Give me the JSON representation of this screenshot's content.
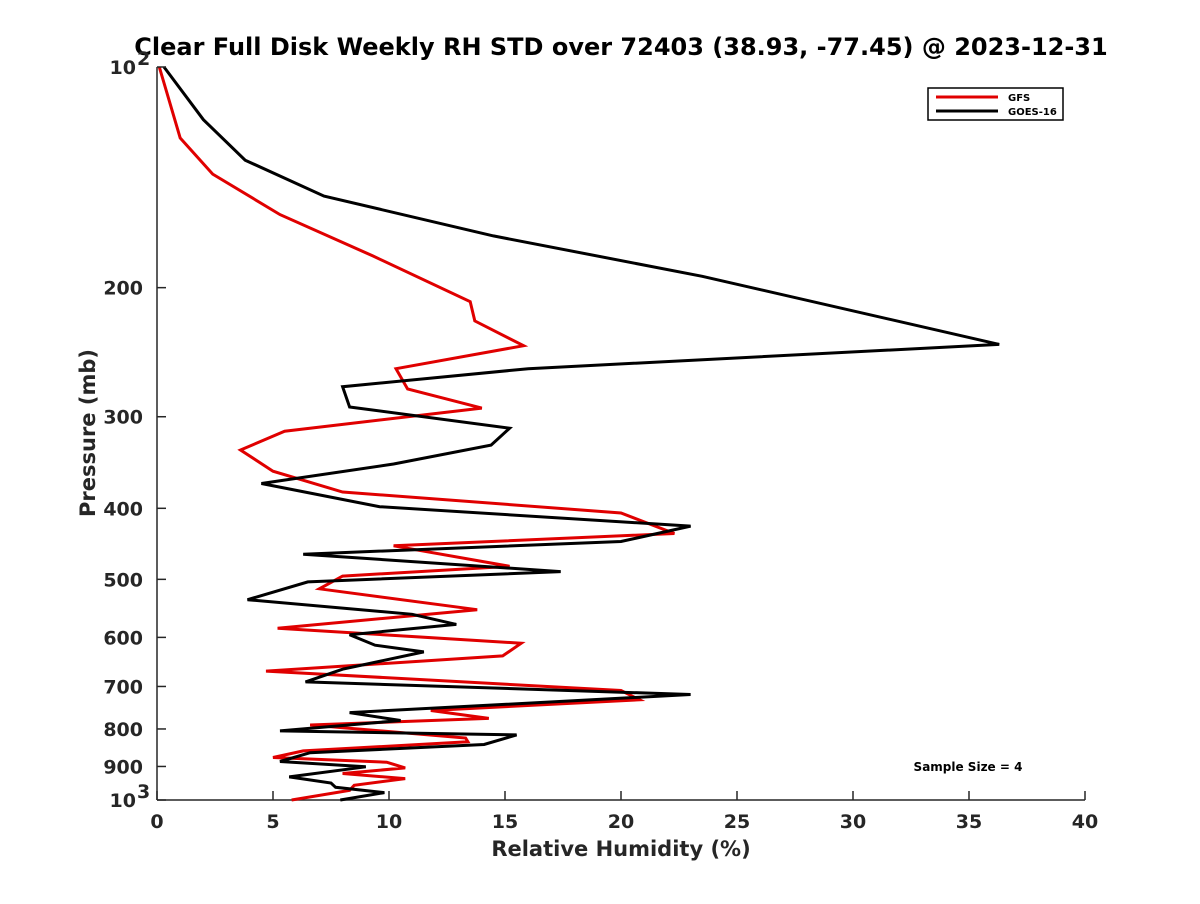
{
  "chart_data": {
    "type": "line",
    "title": "Clear Full Disk Weekly RH STD over 72403 (38.93, -77.45) @ 2023-12-31",
    "xlabel": "Relative Humidity (%)",
    "ylabel": "Pressure (mb)",
    "xlim": [
      0,
      40
    ],
    "ylim": [
      100,
      1000
    ],
    "y_scale": "log",
    "y_reversed": true,
    "x_ticks": [
      "0",
      "5",
      "10",
      "15",
      "20",
      "25",
      "30",
      "35",
      "40"
    ],
    "y_ticks": [
      {
        "value": 100,
        "label": "10",
        "sup": "2"
      },
      {
        "value": 200,
        "label": "200",
        "sup": ""
      },
      {
        "value": 300,
        "label": "300",
        "sup": ""
      },
      {
        "value": 400,
        "label": "400",
        "sup": ""
      },
      {
        "value": 500,
        "label": "500",
        "sup": ""
      },
      {
        "value": 600,
        "label": "600",
        "sup": ""
      },
      {
        "value": 700,
        "label": "700",
        "sup": ""
      },
      {
        "value": 800,
        "label": "800",
        "sup": ""
      },
      {
        "value": 900,
        "label": "900",
        "sup": ""
      },
      {
        "value": 1000,
        "label": "10",
        "sup": "3"
      }
    ],
    "legend": "top-right",
    "grid": false,
    "series": [
      {
        "name": "GFS",
        "color": "#e00000",
        "points": [
          [
            0.1,
            100
          ],
          [
            1.0,
            125
          ],
          [
            2.4,
            140
          ],
          [
            5.3,
            159
          ],
          [
            9.3,
            181
          ],
          [
            13.5,
            209
          ],
          [
            13.7,
            222
          ],
          [
            15.8,
            240
          ],
          [
            10.3,
            258
          ],
          [
            10.8,
            275
          ],
          [
            14.0,
            292
          ],
          [
            5.5,
            314
          ],
          [
            3.6,
            333
          ],
          [
            5.0,
            356
          ],
          [
            8.0,
            380
          ],
          [
            20.0,
            406
          ],
          [
            22.3,
            433
          ],
          [
            10.2,
            450
          ],
          [
            15.2,
            480
          ],
          [
            8.0,
            495
          ],
          [
            7.0,
            515
          ],
          [
            13.8,
            550
          ],
          [
            5.2,
            583
          ],
          [
            15.7,
            611
          ],
          [
            14.9,
            636
          ],
          [
            4.7,
            667
          ],
          [
            20.0,
            709
          ],
          [
            20.8,
            730
          ],
          [
            11.8,
            755
          ],
          [
            14.3,
            774
          ],
          [
            6.6,
            790
          ],
          [
            13.3,
            823
          ],
          [
            13.4,
            833
          ],
          [
            6.3,
            857
          ],
          [
            5.0,
            875
          ],
          [
            9.9,
            888
          ],
          [
            10.7,
            904
          ],
          [
            8.0,
            920
          ],
          [
            10.7,
            935
          ],
          [
            8.5,
            955
          ],
          [
            8.3,
            970
          ],
          [
            5.8,
            1000
          ]
        ]
      },
      {
        "name": "GOES-16",
        "color": "#000000",
        "points": [
          [
            0.3,
            100
          ],
          [
            2.0,
            118
          ],
          [
            3.8,
            134
          ],
          [
            7.2,
            150
          ],
          [
            14.5,
            170
          ],
          [
            23.5,
            193
          ],
          [
            36.3,
            239
          ],
          [
            16.0,
            258
          ],
          [
            8.0,
            273
          ],
          [
            8.3,
            291
          ],
          [
            15.2,
            311
          ],
          [
            14.4,
            328
          ],
          [
            10.2,
            348
          ],
          [
            4.5,
            370
          ],
          [
            9.6,
            398
          ],
          [
            23.0,
            423
          ],
          [
            20.0,
            444
          ],
          [
            6.3,
            462
          ],
          [
            17.4,
            488
          ],
          [
            6.5,
            504
          ],
          [
            3.9,
            533
          ],
          [
            11.0,
            558
          ],
          [
            12.9,
            576
          ],
          [
            8.3,
            595
          ],
          [
            9.4,
            615
          ],
          [
            11.5,
            628
          ],
          [
            8.0,
            663
          ],
          [
            6.4,
            690
          ],
          [
            23.0,
            718
          ],
          [
            8.3,
            760
          ],
          [
            10.5,
            779
          ],
          [
            5.3,
            805
          ],
          [
            15.5,
            815
          ],
          [
            14.1,
            840
          ],
          [
            6.6,
            862
          ],
          [
            5.3,
            886
          ],
          [
            9.0,
            901
          ],
          [
            5.7,
            930
          ],
          [
            7.5,
            948
          ],
          [
            7.7,
            961
          ],
          [
            9.8,
            977
          ],
          [
            7.9,
            1000
          ]
        ]
      }
    ],
    "annotation": "Sample Size = 4"
  }
}
